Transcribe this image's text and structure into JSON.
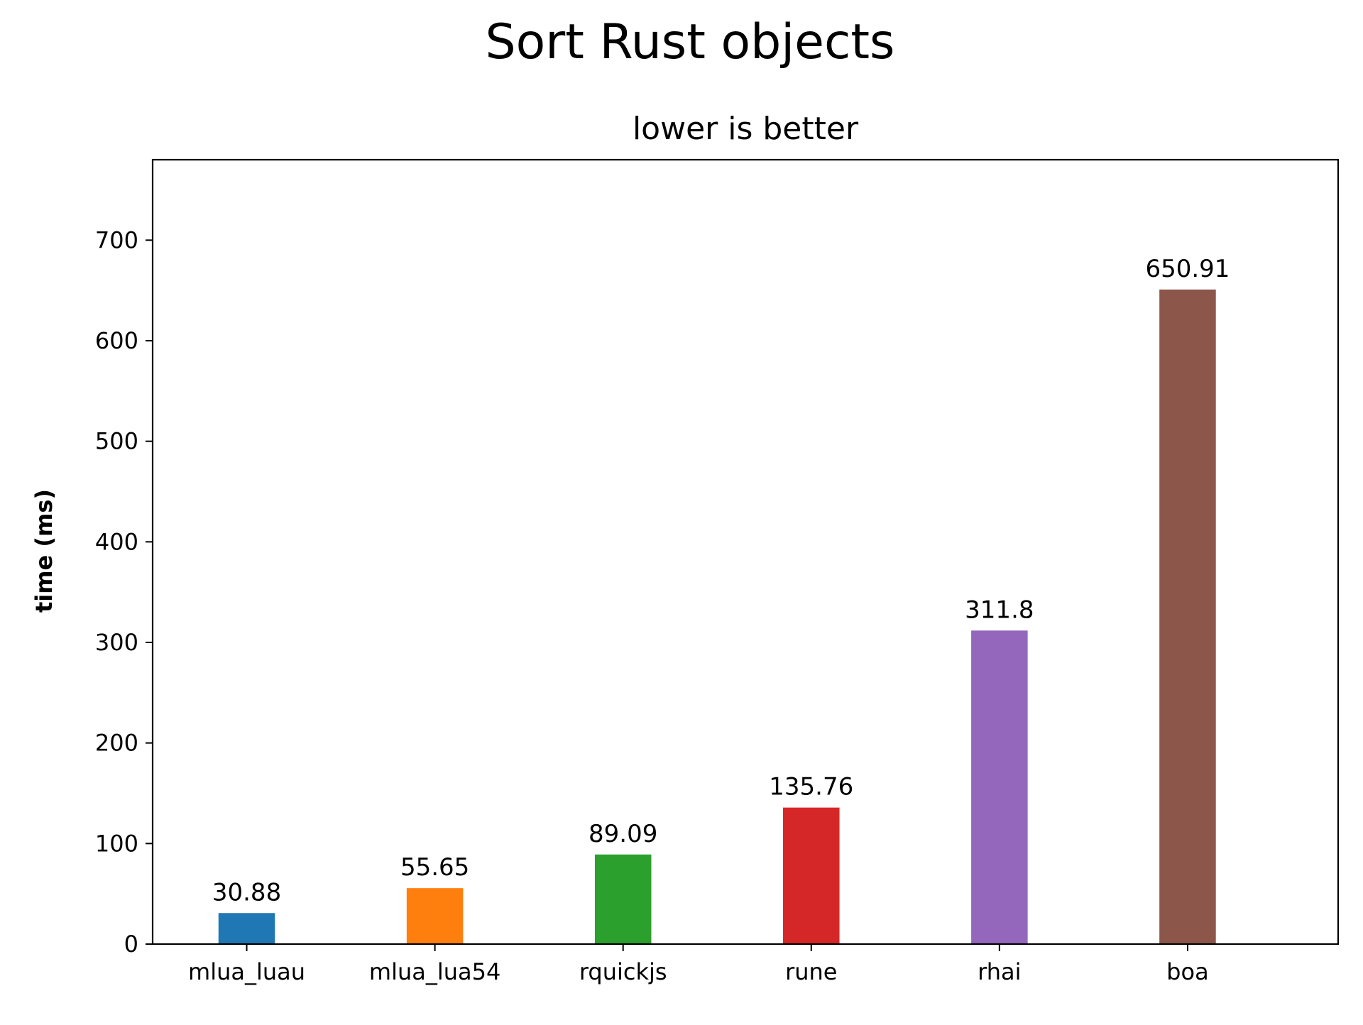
{
  "chart_data": {
    "type": "bar",
    "title": "Sort Rust objects",
    "subtitle": "lower is better",
    "xlabel": "",
    "ylabel": "time (ms)",
    "categories": [
      "mlua_luau",
      "mlua_lua54",
      "rquickjs",
      "rune",
      "rhai",
      "boa"
    ],
    "values": [
      30.88,
      55.65,
      89.09,
      135.76,
      311.8,
      650.91
    ],
    "value_labels": [
      "30.88",
      "55.65",
      "89.09",
      "135.76",
      "311.8",
      "650.91"
    ],
    "colors": [
      "#1f77b4",
      "#ff7f0e",
      "#2ca02c",
      "#d62728",
      "#9467bd",
      "#8c564b"
    ],
    "yticks": [
      0,
      100,
      200,
      300,
      400,
      500,
      600,
      700
    ],
    "ylim": [
      0,
      780
    ],
    "grid": false,
    "legend": "none"
  }
}
